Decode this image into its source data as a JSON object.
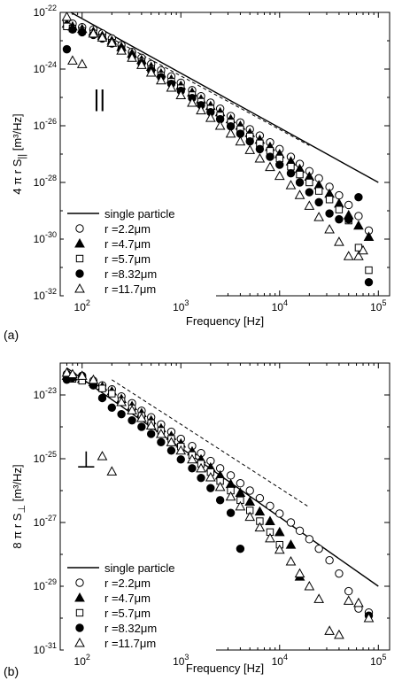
{
  "chart_data": [
    {
      "panel_label": "(a)",
      "type": "scatter",
      "xlabel": "Frequency [Hz]",
      "ylabel_main": "4 π r S",
      "ylabel_sub": "||",
      "ylabel_unit": "[m³/Hz]",
      "x_scale": "log",
      "y_scale": "log",
      "xlim": [
        60,
        130000
      ],
      "ylim": [
        1e-32,
        1e-22
      ],
      "x_ticks": [
        100,
        1000,
        10000,
        100000
      ],
      "x_tick_labels": [
        {
          "base": "10",
          "exp": "2"
        },
        {
          "base": "10",
          "exp": "3"
        },
        {
          "base": "10",
          "exp": "4"
        },
        {
          "base": "10",
          "exp": "5"
        }
      ],
      "y_ticks": [
        1e-32,
        1e-30,
        1e-28,
        1e-26,
        1e-24,
        1e-22
      ],
      "y_tick_labels": [
        {
          "base": "10",
          "exp": "-32"
        },
        {
          "base": "10",
          "exp": "-30"
        },
        {
          "base": "10",
          "exp": "-28"
        },
        {
          "base": "10",
          "exp": "-26"
        },
        {
          "base": "10",
          "exp": "-24"
        },
        {
          "base": "10",
          "exp": "-22"
        }
      ],
      "annotation": "||",
      "annotation_at": [
        150,
        1e-25
      ],
      "legend_position": "lower-left",
      "reference_line": {
        "name": "single particle",
        "x": [
          70,
          100000
        ],
        "y": [
          1.2e-22,
          1e-28
        ]
      },
      "dashed_line": {
        "x": [
          220,
          20000
        ],
        "y": [
          1e-23,
          2e-27
        ]
      },
      "series": [
        {
          "name": "r =2.2μm",
          "marker": "circle-open",
          "x": [
            70,
            80,
            100,
            130,
            160,
            200,
            250,
            320,
            400,
            500,
            630,
            800,
            1000,
            1300,
            1600,
            2000,
            2500,
            3200,
            4000,
            5000,
            6300,
            8000,
            10000,
            13000,
            16000,
            20000,
            25000,
            32000,
            40000,
            50000,
            63000,
            80000
          ],
          "y": [
            5e-23,
            4e-23,
            3e-23,
            2.5e-23,
            1.8e-23,
            1.2e-23,
            7e-24,
            4e-24,
            2.5e-24,
            1.5e-24,
            9e-25,
            5.5e-25,
            3.3e-25,
            1.8e-25,
            1.1e-25,
            6.5e-26,
            4e-26,
            2.2e-26,
            1.3e-26,
            7.5e-27,
            4.5e-27,
            2.6e-27,
            1.5e-27,
            8e-28,
            4.5e-28,
            2.5e-28,
            1.4e-28,
            7e-29,
            3.5e-29,
            1.6e-29,
            6.5e-30,
            2e-30
          ]
        },
        {
          "name": "r =4.7μm",
          "marker": "triangle-filled",
          "x": [
            70,
            80,
            100,
            130,
            160,
            200,
            250,
            320,
            400,
            500,
            630,
            800,
            1000,
            1300,
            1600,
            2000,
            2500,
            3200,
            4000,
            5000,
            6300,
            8000,
            10000,
            13000,
            16000,
            20000,
            25000,
            32000,
            40000,
            50000,
            63000,
            80000
          ],
          "y": [
            4e-23,
            3.2e-23,
            2.6e-23,
            2.1e-23,
            1.5e-23,
            1e-23,
            6e-24,
            3.5e-24,
            2.1e-24,
            1.2e-24,
            7e-25,
            4.3e-25,
            2.6e-25,
            1.5e-25,
            8.5e-26,
            5e-26,
            3e-26,
            1.7e-26,
            1e-26,
            5.5e-27,
            3.2e-27,
            1.8e-27,
            1e-27,
            5.5e-28,
            3e-28,
            1.6e-28,
            8e-29,
            4e-29,
            1.8e-29,
            7e-30,
            3e-30,
            1.2e-30
          ]
        },
        {
          "name": "r =5.7μm",
          "marker": "square-open",
          "x": [
            70,
            80,
            100,
            130,
            160,
            200,
            250,
            320,
            400,
            500,
            630,
            800,
            1000,
            1300,
            1600,
            2000,
            2500,
            3200,
            4000,
            5000,
            6300,
            8000,
            10000,
            13000,
            16000,
            20000,
            25000,
            32000,
            40000,
            50000,
            63000,
            80000
          ],
          "y": [
            3.2e-23,
            2.7e-23,
            2.2e-23,
            1.8e-23,
            1.3e-23,
            8.5e-24,
            5e-24,
            3e-24,
            1.8e-24,
            1e-24,
            6e-25,
            3.6e-25,
            2.1e-25,
            1.2e-25,
            7e-26,
            4e-26,
            2.3e-26,
            1.3e-26,
            7.5e-27,
            4.2e-27,
            2.4e-27,
            1.3e-27,
            7e-28,
            3.6e-28,
            1.9e-28,
            1e-28,
            5e-29,
            2.5e-29,
            1.1e-29,
            4.5e-30,
            5e-31,
            8e-32
          ]
        },
        {
          "name": "r =8.32μm",
          "marker": "circle-filled",
          "x": [
            70,
            80,
            100,
            130,
            160,
            200,
            250,
            320,
            400,
            500,
            630,
            800,
            1000,
            1300,
            1600,
            2000,
            2500,
            3200,
            4000,
            5000,
            6300,
            8000,
            10000,
            13000,
            16000,
            20000,
            25000,
            32000,
            40000,
            50000,
            63000,
            80000
          ],
          "y": [
            5e-24,
            2.5e-23,
            2e-23,
            1.6e-23,
            1.2e-23,
            8e-24,
            4.8e-24,
            2.8e-24,
            1.6e-24,
            9e-25,
            5.2e-25,
            3e-25,
            1.7e-25,
            9.5e-26,
            5.3e-26,
            3e-26,
            1.7e-26,
            9.5e-27,
            5.2e-27,
            2.8e-27,
            1.5e-27,
            8e-28,
            4.2e-28,
            2.1e-28,
            1e-28,
            4.5e-29,
            2e-29,
            8e-30,
            5e-30,
            5e-30,
            3e-29,
            3e-32
          ]
        },
        {
          "name": "r =11.7μm",
          "marker": "triangle-open",
          "x": [
            70,
            80,
            100,
            130,
            160,
            200,
            250,
            320,
            400,
            500,
            630,
            800,
            1000,
            1300,
            1600,
            2000,
            2500,
            3200,
            4000,
            5000,
            6300,
            8000,
            10000,
            13000,
            16000,
            20000,
            25000,
            32000,
            40000,
            50000,
            63000,
            70000
          ],
          "y": [
            7e-23,
            2e-24,
            1.5e-24,
            1.8e-23,
            1.3e-23,
            8.5e-24,
            4.5e-24,
            2.5e-24,
            1.4e-24,
            7.5e-25,
            4e-25,
            2.2e-25,
            1.2e-25,
            6.5e-26,
            3.5e-26,
            1.9e-26,
            1e-26,
            5.3e-27,
            2.8e-27,
            1.4e-27,
            7e-28,
            3.5e-28,
            1.7e-28,
            8e-29,
            3.6e-29,
            1.5e-29,
            6e-30,
            2.2e-30,
            8e-31,
            2.5e-31,
            2.5e-31,
            4e-31
          ]
        }
      ]
    },
    {
      "panel_label": "(b)",
      "type": "scatter",
      "xlabel": "Frequency [Hz]",
      "ylabel_main": "8 π r S",
      "ylabel_sub": "⊥",
      "ylabel_unit": "[m³/Hz]",
      "x_scale": "log",
      "y_scale": "log",
      "xlim": [
        60,
        130000
      ],
      "ylim": [
        1e-31,
        1e-22
      ],
      "x_ticks": [
        100,
        1000,
        10000,
        100000
      ],
      "x_tick_labels": [
        {
          "base": "10",
          "exp": "2"
        },
        {
          "base": "10",
          "exp": "3"
        },
        {
          "base": "10",
          "exp": "4"
        },
        {
          "base": "10",
          "exp": "5"
        }
      ],
      "y_ticks": [
        1e-31,
        1e-29,
        1e-27,
        1e-25,
        1e-23
      ],
      "y_tick_labels": [
        {
          "base": "10",
          "exp": "-31"
        },
        {
          "base": "10",
          "exp": "-29"
        },
        {
          "base": "10",
          "exp": "-27"
        },
        {
          "base": "10",
          "exp": "-25"
        },
        {
          "base": "10",
          "exp": "-23"
        }
      ],
      "annotation": "⊥",
      "annotation_at": [
        110,
        1e-25
      ],
      "legend_position": "lower-left",
      "reference_line": {
        "name": "single particle",
        "x": [
          70,
          100000
        ],
        "y": [
          7e-23,
          1e-29
        ]
      },
      "dashed_line": {
        "x": [
          200,
          20000
        ],
        "y": [
          3e-23,
          3e-27
        ]
      },
      "series": [
        {
          "name": "r =2.2μm",
          "marker": "circle-open",
          "x": [
            70,
            80,
            100,
            130,
            160,
            200,
            250,
            320,
            400,
            500,
            630,
            800,
            1000,
            1300,
            1600,
            2000,
            2500,
            3200,
            4000,
            5000,
            6300,
            8000,
            10000,
            13000,
            16000,
            20000,
            25000,
            32000,
            40000,
            50000,
            63000,
            80000
          ],
          "y": [
            4.5e-23,
            4e-23,
            3.5e-23,
            2.8e-23,
            2e-23,
            1.5e-23,
            9e-24,
            5.5e-24,
            3.2e-24,
            2e-24,
            1.2e-24,
            7e-25,
            4.2e-25,
            2.5e-25,
            1.5e-25,
            8.5e-26,
            5e-26,
            3e-26,
            1.7e-26,
            1e-26,
            5.8e-27,
            3.3e-27,
            1.9e-27,
            1e-27,
            5.5e-28,
            3e-28,
            1.5e-28,
            6.5e-29,
            2.5e-29,
            7e-30,
            2e-30,
            1.5e-30
          ]
        },
        {
          "name": "r =4.7μm",
          "marker": "triangle-filled",
          "x": [
            70,
            80,
            100,
            130,
            160,
            200,
            250,
            320,
            400,
            500,
            630,
            800,
            1000,
            1300,
            1600,
            2000,
            2500,
            3200,
            4000,
            5000,
            6300,
            8000,
            10000,
            13000,
            16000
          ],
          "y": [
            4e-23,
            3.8e-23,
            3.2e-23,
            2.5e-23,
            1.8e-23,
            1.3e-23,
            7.5e-24,
            4.5e-24,
            2.7e-24,
            1.6e-24,
            9e-25,
            5.2e-25,
            3e-25,
            1.7e-25,
            9.5e-26,
            5.3e-26,
            3e-26,
            1.6e-26,
            8.5e-27,
            4.5e-27,
            2.2e-27,
            1.1e-27,
            5e-28,
            2e-28,
            2e-29
          ]
        },
        {
          "name": "r =5.7μm",
          "marker": "square-open",
          "x": [
            70,
            80,
            100,
            130,
            160,
            200,
            250,
            320,
            400,
            500,
            630,
            800,
            1000,
            1300,
            1600,
            2000,
            2500,
            3200,
            4000,
            5000,
            6300,
            8000,
            10000
          ],
          "y": [
            3.5e-23,
            3.2e-23,
            2.8e-23,
            2.2e-23,
            1.6e-23,
            1.1e-23,
            6.5e-24,
            3.8e-24,
            2.2e-24,
            1.3e-24,
            7.5e-25,
            4.2e-25,
            2.4e-25,
            1.3e-25,
            7e-26,
            3.8e-26,
            2e-26,
            1e-26,
            5e-27,
            2.4e-27,
            1.1e-27,
            5e-28,
            2e-28
          ]
        },
        {
          "name": "r =8.32μm",
          "marker": "circle-filled",
          "x": [
            70,
            80,
            100,
            130,
            160,
            200,
            250,
            320,
            400,
            500,
            630,
            800,
            1000,
            1300,
            1600,
            2000,
            2500,
            3200,
            4000,
            80000
          ],
          "y": [
            3e-23,
            3.5e-23,
            4e-23,
            2e-23,
            8e-24,
            4e-24,
            2.5e-24,
            1.6e-24,
            1e-24,
            6e-25,
            3.3e-25,
            1.8e-25,
            9.5e-26,
            5e-26,
            2.5e-26,
            1.2e-26,
            5e-27,
            2e-27,
            1.5e-28,
            1.2e-30
          ]
        },
        {
          "name": "r =11.7μm",
          "marker": "triangle-open",
          "x": [
            70,
            80,
            100,
            130,
            160,
            200,
            250,
            320,
            400,
            500,
            630,
            800,
            1000,
            1300,
            1600,
            2000,
            2500,
            3200,
            4000,
            5000,
            6300,
            8000,
            10000,
            13000,
            16000,
            20000,
            25000,
            32000,
            40000,
            50000,
            63000,
            80000
          ],
          "y": [
            5e-23,
            4.5e-23,
            4e-23,
            3e-23,
            1.2e-25,
            4e-26,
            6e-24,
            3.3e-24,
            1.9e-24,
            1.1e-24,
            6e-25,
            3.3e-25,
            1.8e-25,
            9.5e-26,
            5e-26,
            2.6e-26,
            1.3e-26,
            6.5e-27,
            3.2e-27,
            1.5e-27,
            7e-28,
            3.2e-28,
            1.4e-28,
            6e-29,
            2.5e-29,
            1e-29,
            4e-30,
            4e-31,
            3e-31,
            3.5e-30,
            3e-30,
            1e-30
          ]
        }
      ]
    }
  ]
}
